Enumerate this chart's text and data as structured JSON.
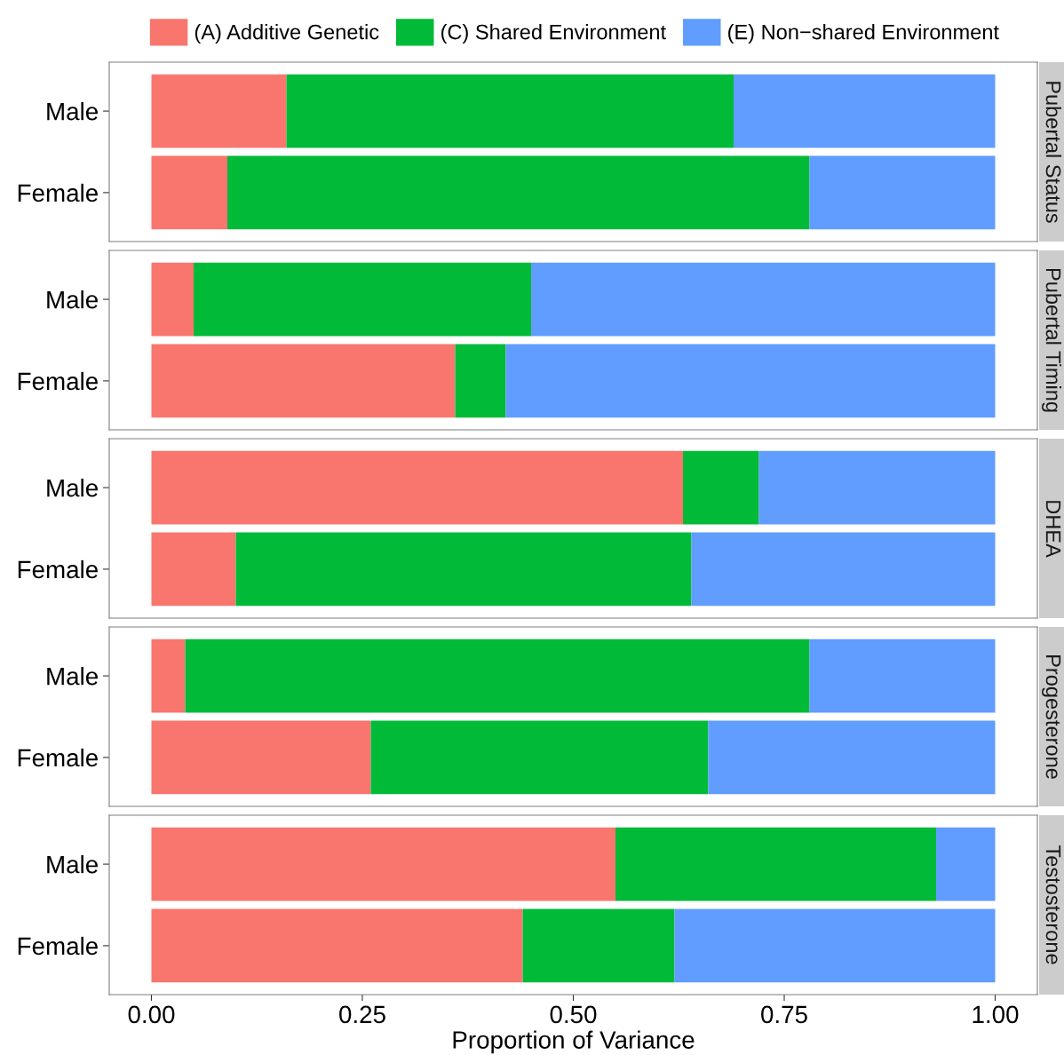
{
  "chart_data": [
    {
      "type": "bar",
      "orientation": "horizontal",
      "stacked": true,
      "title": "Pubertal Status",
      "categories": [
        "Male",
        "Female"
      ],
      "xlim": [
        -0.05,
        1.05
      ],
      "tick_labels": "y",
      "legend": "top",
      "grid": false,
      "series": [
        {
          "name": "(A) Additive Genetic",
          "color": "#f8766d",
          "values": [
            0.16,
            0.09
          ]
        },
        {
          "name": "(C) Shared Environment",
          "color": "#00ba38",
          "values": [
            0.53,
            0.69
          ]
        },
        {
          "name": "(E) Non−shared Environment",
          "color": "#619cff",
          "values": [
            0.31,
            0.22
          ]
        }
      ]
    },
    {
      "type": "bar",
      "orientation": "horizontal",
      "stacked": true,
      "title": "Pubertal Timing",
      "categories": [
        "Male",
        "Female"
      ],
      "xlim": [
        -0.05,
        1.05
      ],
      "tick_labels": "y",
      "grid": false,
      "series": [
        {
          "color": "#f8766d",
          "values": [
            0.05,
            0.36
          ]
        },
        {
          "color": "#00ba38",
          "values": [
            0.4,
            0.06
          ]
        },
        {
          "color": "#619cff",
          "values": [
            0.55,
            0.58
          ]
        }
      ]
    },
    {
      "type": "bar",
      "orientation": "horizontal",
      "stacked": true,
      "title": "DHEA",
      "categories": [
        "Male",
        "Female"
      ],
      "xlim": [
        -0.05,
        1.05
      ],
      "tick_labels": "y",
      "grid": false,
      "series": [
        {
          "color": "#f8766d",
          "values": [
            0.63,
            0.1
          ]
        },
        {
          "color": "#00ba38",
          "values": [
            0.09,
            0.54
          ]
        },
        {
          "color": "#619cff",
          "values": [
            0.28,
            0.36
          ]
        }
      ]
    },
    {
      "type": "bar",
      "orientation": "horizontal",
      "stacked": true,
      "title": "Progesterone",
      "categories": [
        "Male",
        "Female"
      ],
      "xlim": [
        -0.05,
        1.05
      ],
      "tick_labels": "y",
      "grid": false,
      "series": [
        {
          "color": "#f8766d",
          "values": [
            0.04,
            0.26
          ]
        },
        {
          "color": "#00ba38",
          "values": [
            0.74,
            0.4
          ]
        },
        {
          "color": "#619cff",
          "values": [
            0.22,
            0.34
          ]
        }
      ]
    },
    {
      "type": "bar",
      "orientation": "horizontal",
      "stacked": true,
      "title": "Testosterone",
      "xlabel": "Proportion of Variance",
      "categories": [
        "Male",
        "Female"
      ],
      "xlim": [
        -0.05,
        1.05
      ],
      "xticks": [
        {
          "value": 0,
          "label": "0.00"
        },
        {
          "value": 0.25,
          "label": "0.25"
        },
        {
          "value": 0.5,
          "label": "0.50"
        },
        {
          "value": 0.75,
          "label": "0.75"
        },
        {
          "value": 1,
          "label": "1.00"
        }
      ],
      "grid": false,
      "series": [
        {
          "color": "#f8766d",
          "values": [
            0.55,
            0.44
          ]
        },
        {
          "color": "#00ba38",
          "values": [
            0.38,
            0.18
          ]
        },
        {
          "color": "#619cff",
          "values": [
            0.07,
            0.38
          ]
        }
      ]
    }
  ]
}
